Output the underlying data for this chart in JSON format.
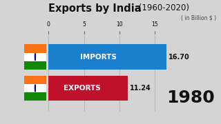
{
  "title_main": "Exports by India",
  "title_years": " (1960-2020)",
  "subtitle": "( in Billion $ )",
  "year_label": "1980",
  "categories": [
    "IMPORTS",
    "EXPORTS"
  ],
  "values": [
    16.7,
    11.24
  ],
  "bar_colors": [
    "#1a7fcc",
    "#c0112b"
  ],
  "bar_labels": [
    "16.70",
    "11.24"
  ],
  "xlim": [
    0,
    20
  ],
  "xticks": [
    0.0,
    5.0,
    10.0,
    15.0
  ],
  "background_color": "#d4d4d4",
  "title_color": "#111111",
  "subtitle_color": "#444444",
  "year_color": "#111111",
  "bar_text_color": "#ffffff",
  "value_text_color": "#111111",
  "flag_orange": "#f97316",
  "flag_white": "#ffffff",
  "flag_green": "#138808",
  "flag_chakra": "#000080"
}
